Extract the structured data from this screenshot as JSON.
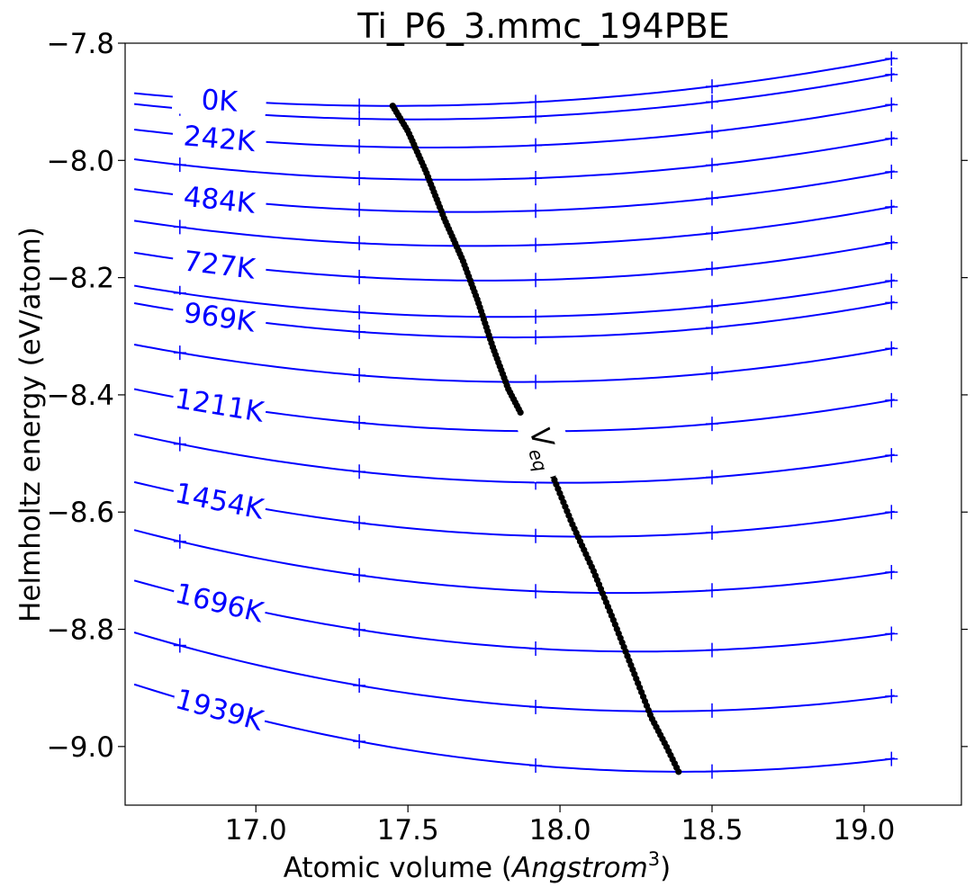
{
  "chart_data": {
    "type": "line",
    "title": "Ti_P6_3.mmc_194PBE",
    "xlabel_main": "Atomic volume (",
    "xlabel_italic": "Angstrom",
    "xlabel_sup": "3",
    "xlabel_close": ")",
    "ylabel": "Helmholtz energy (eV/atom)",
    "xlim": [
      16.57,
      19.32
    ],
    "ylim": [
      -9.1,
      -7.8
    ],
    "x_ticks": [
      17.0,
      17.5,
      18.0,
      18.5,
      19.0
    ],
    "x_tick_labels": [
      "17.0",
      "17.5",
      "18.0",
      "18.5",
      "19.0"
    ],
    "y_ticks": [
      -7.8,
      -8.0,
      -8.2,
      -8.4,
      -8.6,
      -8.8,
      -9.0
    ],
    "y_tick_labels": [
      "−7.8",
      "−8.0",
      "−8.2",
      "−8.4",
      "−8.6",
      "−8.8",
      "−9.0"
    ],
    "grid": false,
    "line_color": "#0000ff",
    "veq_color": "#000000",
    "marker_x": [
      16.75,
      17.34,
      17.92,
      18.5,
      19.09
    ],
    "curve_x_range": [
      16.6,
      19.1
    ],
    "isotherms": [
      {
        "label": "0K",
        "a": 0.03,
        "vmin": 17.45,
        "emin": -7.907
      },
      {
        "label": "",
        "a": 0.031,
        "vmin": 17.52,
        "emin": -7.93
      },
      {
        "label": "242K",
        "a": 0.032,
        "vmin": 17.58,
        "emin": -7.978
      },
      {
        "label": "",
        "a": 0.033,
        "vmin": 17.63,
        "emin": -8.033
      },
      {
        "label": "484K",
        "a": 0.034,
        "vmin": 17.67,
        "emin": -8.088
      },
      {
        "label": "",
        "a": 0.035,
        "vmin": 17.71,
        "emin": -8.146
      },
      {
        "label": "727K",
        "a": 0.036,
        "vmin": 17.75,
        "emin": -8.205
      },
      {
        "label": "",
        "a": 0.037,
        "vmin": 17.8,
        "emin": -8.267
      },
      {
        "label": "969K",
        "a": 0.038,
        "vmin": 17.84,
        "emin": -8.302
      },
      {
        "label": "",
        "a": 0.039,
        "vmin": 17.88,
        "emin": -8.378
      },
      {
        "label": "1211K",
        "a": 0.04,
        "vmin": 17.94,
        "emin": -8.462
      },
      {
        "label": "",
        "a": 0.041,
        "vmin": 18.02,
        "emin": -8.55
      },
      {
        "label": "1454K",
        "a": 0.042,
        "vmin": 18.09,
        "emin": -8.642
      },
      {
        "label": "",
        "a": 0.043,
        "vmin": 18.18,
        "emin": -8.738
      },
      {
        "label": "1696K",
        "a": 0.044,
        "vmin": 18.26,
        "emin": -8.838
      },
      {
        "label": "",
        "a": 0.045,
        "vmin": 18.33,
        "emin": -8.94
      },
      {
        "label": "1939K",
        "a": 0.046,
        "vmin": 18.4,
        "emin": -9.043
      }
    ],
    "veq_label": "V",
    "veq_sub": "eq",
    "veq_curve": {
      "upper": [
        [
          17.45,
          -7.907
        ],
        [
          17.5,
          -7.95
        ],
        [
          17.56,
          -8.02
        ],
        [
          17.62,
          -8.1
        ],
        [
          17.68,
          -8.17
        ],
        [
          17.73,
          -8.24
        ],
        [
          17.78,
          -8.32
        ],
        [
          17.83,
          -8.39
        ],
        [
          17.87,
          -8.43
        ]
      ],
      "lower": [
        [
          17.97,
          -8.53
        ],
        [
          18.04,
          -8.62
        ],
        [
          18.11,
          -8.7
        ],
        [
          18.18,
          -8.79
        ],
        [
          18.24,
          -8.87
        ],
        [
          18.3,
          -8.95
        ],
        [
          18.35,
          -9.0
        ],
        [
          18.39,
          -9.043
        ]
      ],
      "point_count_upper": 85,
      "point_count_lower": 70
    }
  }
}
